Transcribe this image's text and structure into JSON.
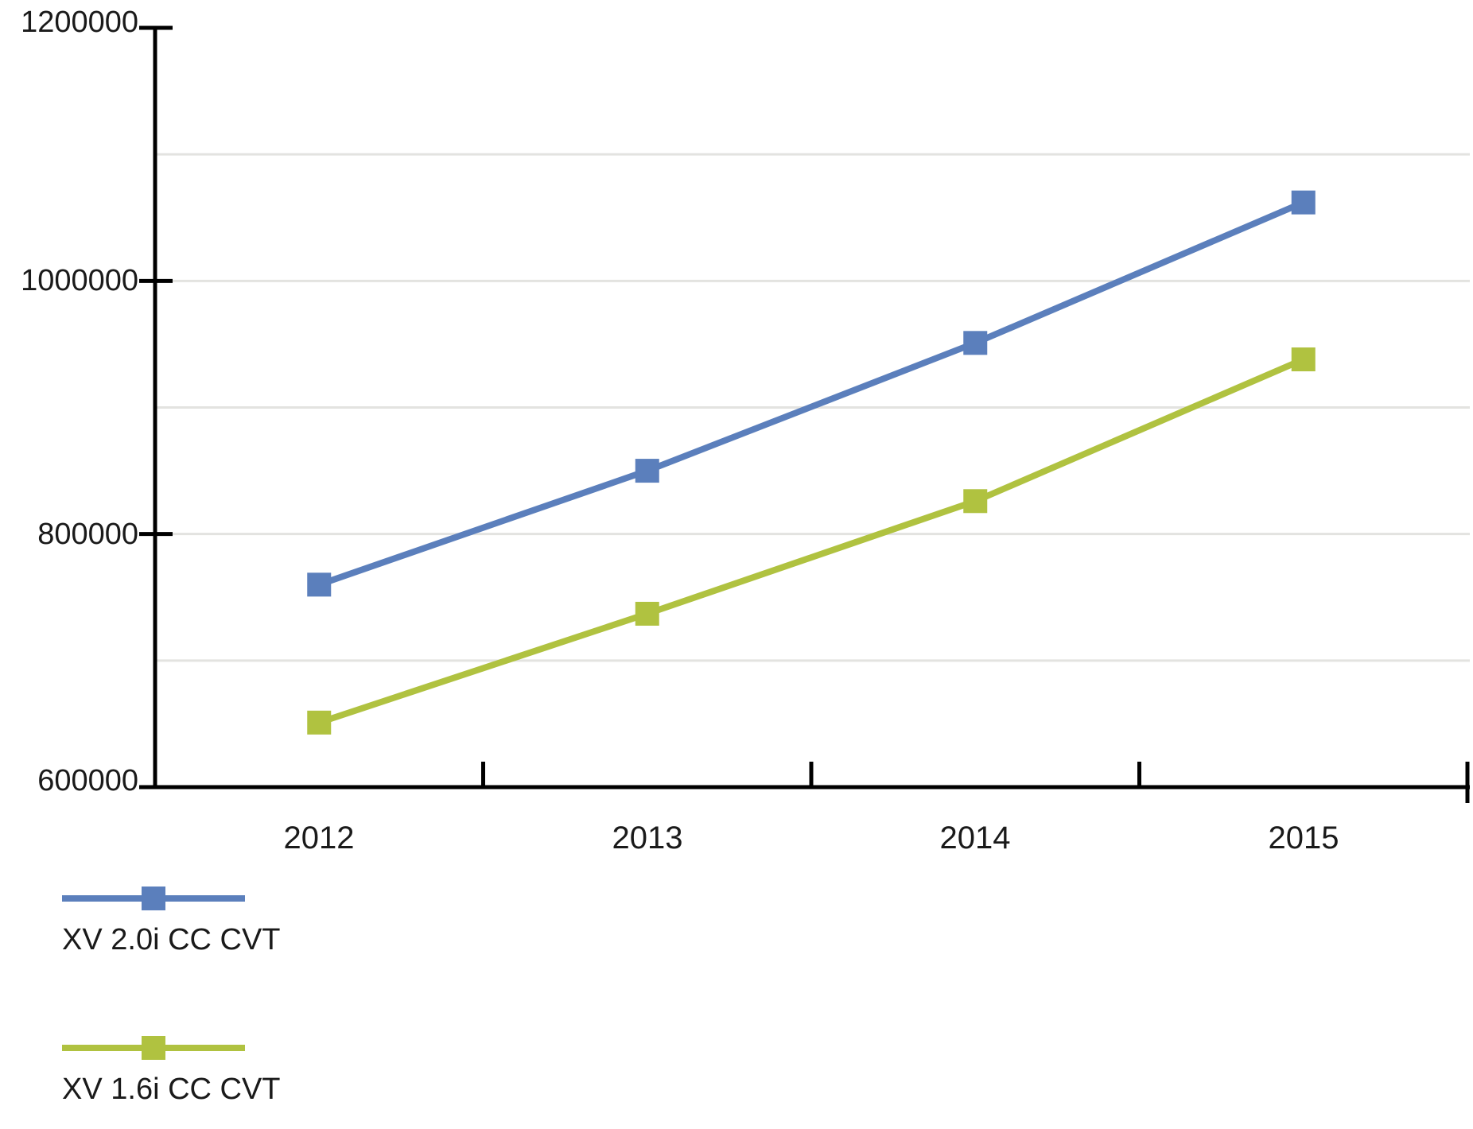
{
  "chart_data": {
    "type": "line",
    "title": "",
    "categories": [
      "2012",
      "2013",
      "2014",
      "2015"
    ],
    "series": [
      {
        "name": "XV 2.0i CC CVT",
        "color": "#5b7fbc",
        "marker": "square",
        "values": [
          760000,
          850000,
          951000,
          1062000
        ]
      },
      {
        "name": "XV 1.6i CC CVT",
        "color": "#b0c240",
        "marker": "square",
        "values": [
          651000,
          737000,
          826000,
          938000
        ]
      }
    ],
    "ylim": [
      600000,
      1200000
    ],
    "yticks": [
      600000,
      800000,
      1000000,
      1200000
    ],
    "ytick_labels": [
      "1200000",
      "1000000",
      "800000",
      "600000"
    ],
    "gridline_values": [
      700000,
      800000,
      900000,
      1000000,
      1100000
    ],
    "grid": "horizontal-light",
    "legend_position": "bottom-left",
    "axis_color": "#000000",
    "gridline_color": "#e3e3e0",
    "background": "#ffffff"
  }
}
